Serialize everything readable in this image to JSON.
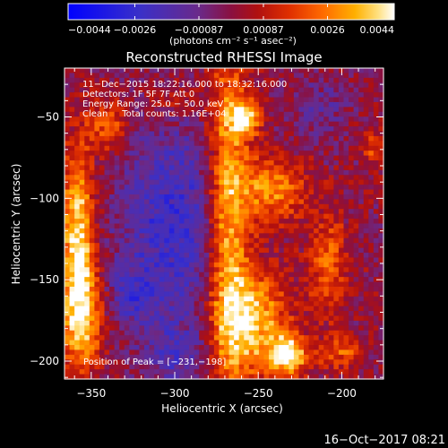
{
  "colorbar": {
    "tick_labels": [
      "−0.0044",
      "−0.0026",
      "−0.00087",
      "0.00087",
      "0.0026",
      "0.0044"
    ],
    "tick_values": [
      -0.0044,
      -0.0026,
      -0.00087,
      0.00087,
      0.0026,
      0.0044
    ],
    "units": "(photons cm⁻² s⁻¹ asec⁻²)",
    "range": [
      -0.0044,
      0.0044
    ]
  },
  "title": "Reconstructed RHESSI Image",
  "info": {
    "line1": "11−Dec−2015 18:22:16.000 to 18:32:16.000",
    "line2": "Detectors: 1F 5F 7F  Att 0",
    "line3": "Energy Range: 25.0 − 50.0 keV",
    "line4": "Clean     Total counts: 1.16E+04",
    "peak": "Position of Peak = [−231,−198]"
  },
  "axes": {
    "xlabel": "Heliocentric X (arcsec)",
    "ylabel": "Heliocentric Y (arcsec)",
    "xticks": [
      "−350",
      "−300",
      "−250",
      "−200"
    ],
    "yticks": [
      "−50",
      "−100",
      "−150",
      "−200"
    ]
  },
  "timestamp": "16−Oct−2017 08:21",
  "chart_data": {
    "type": "heatmap",
    "title": "Reconstructed RHESSI Image",
    "xlabel": "Heliocentric X (arcsec)",
    "ylabel": "Heliocentric Y (arcsec)",
    "xlim": [
      -366,
      -175
    ],
    "ylim": [
      -211,
      -20
    ],
    "x_ticks": [
      -350,
      -300,
      -250,
      -200
    ],
    "y_ticks": [
      -50,
      -100,
      -150,
      -200
    ],
    "colorbar_range": [
      -0.0044,
      0.0044
    ],
    "colorbar_ticks": [
      -0.0044,
      -0.0026,
      -0.00087,
      0.00087,
      0.0026,
      0.0044
    ],
    "colormap": [
      "#0000ff",
      "#5a2a9a",
      "#8a1040",
      "#d02000",
      "#ff6000",
      "#ffb000",
      "#ffffff"
    ],
    "peak_position": [
      -231,
      -198
    ],
    "features": [
      {
        "x": -268,
        "y": -115,
        "sx": 9,
        "sy": 80,
        "amp": 0.0038
      },
      {
        "x": -252,
        "y": -175,
        "sx": 14,
        "sy": 22,
        "amp": 0.0035
      },
      {
        "x": -242,
        "y": -95,
        "sx": 14,
        "sy": 14,
        "amp": 0.003
      },
      {
        "x": -232,
        "y": -196,
        "sx": 8,
        "sy": 9,
        "amp": 0.0044
      },
      {
        "x": -258,
        "y": -50,
        "sx": 7,
        "sy": 8,
        "amp": 0.0034
      },
      {
        "x": -358,
        "y": -125,
        "sx": 7,
        "sy": 40,
        "amp": 0.0042
      },
      {
        "x": -355,
        "y": -175,
        "sx": 9,
        "sy": 22,
        "amp": 0.0028
      },
      {
        "x": -340,
        "y": -55,
        "sx": 8,
        "sy": 12,
        "amp": 0.0022
      },
      {
        "x": -208,
        "y": -140,
        "sx": 8,
        "sy": 22,
        "amp": 0.0022
      },
      {
        "x": -200,
        "y": -195,
        "sx": 9,
        "sy": 8,
        "amp": 0.002
      },
      {
        "x": -180,
        "y": -70,
        "sx": 6,
        "sy": 8,
        "amp": 0.0018
      },
      {
        "x": -300,
        "y": -40,
        "sx": 12,
        "sy": 8,
        "amp": 0.0012
      },
      {
        "x": -300,
        "y": -115,
        "sx": 24,
        "sy": 45,
        "amp": -0.0024
      },
      {
        "x": -300,
        "y": -195,
        "sx": 14,
        "sy": 14,
        "amp": -0.0014
      },
      {
        "x": -215,
        "y": -45,
        "sx": 12,
        "sy": 12,
        "amp": -0.0012
      },
      {
        "x": -325,
        "y": -160,
        "sx": 10,
        "sy": 12,
        "amp": -0.0016
      }
    ]
  }
}
